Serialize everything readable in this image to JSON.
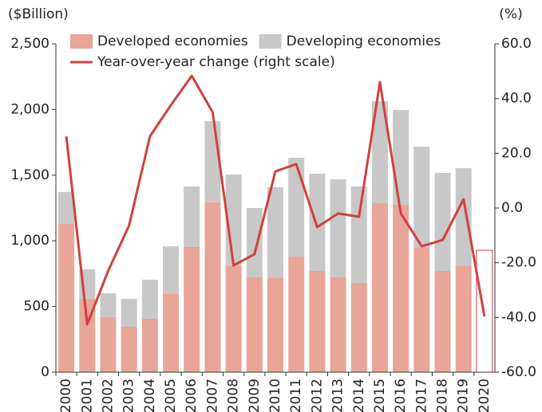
{
  "chart_data": {
    "type": "bar",
    "y_label": "($Billion)",
    "y2_label": "(%)",
    "categories": [
      "2000",
      "2001",
      "2002",
      "2003",
      "2004",
      "2005",
      "2006",
      "2007",
      "2008",
      "2009",
      "2010",
      "2011",
      "2012",
      "2013",
      "2014",
      "2015",
      "2016",
      "2017",
      "2018",
      "2019",
      "2020"
    ],
    "series": [
      {
        "name": "Developed economies",
        "color": "#e8a598",
        "kind": "bar",
        "values": [
          1129,
          558,
          419,
          346,
          407,
          595,
          953,
          1293,
          807,
          722,
          716,
          880,
          771,
          722,
          680,
          1286,
          1274,
          950,
          771,
          807,
          null
        ]
      },
      {
        "name": "Developing economies",
        "color": "#c8c8c8",
        "kind": "bar",
        "values": [
          242,
          225,
          182,
          212,
          297,
          364,
          461,
          618,
          698,
          528,
          692,
          752,
          740,
          746,
          734,
          777,
          722,
          767,
          746,
          746,
          null
        ]
      },
      {
        "color": "#d04040",
        "kind": "outline",
        "values": [
          null,
          null,
          null,
          null,
          null,
          null,
          null,
          null,
          null,
          null,
          null,
          null,
          null,
          null,
          null,
          null,
          null,
          null,
          null,
          null,
          928
        ]
      },
      {
        "name": "Year-over-year change (right scale)",
        "color": "#d04040",
        "kind": "line",
        "axis": "y2",
        "values": [
          26.2,
          -42.5,
          -23.0,
          -6.4,
          26.2,
          37.6,
          48.3,
          35.0,
          -21.0,
          -16.9,
          13.4,
          16.0,
          -7.0,
          -2.0,
          -3.2,
          46.0,
          -2.0,
          -14.0,
          -11.7,
          3.2,
          -39.6
        ]
      }
    ],
    "ylim": [
      0,
      2500
    ],
    "yticks": [
      0,
      500,
      {
        "value": 1000,
        "label": "1,000"
      },
      {
        "value": 1500,
        "label": "1,500"
      },
      {
        "value": 2000,
        "label": "2,000"
      },
      {
        "value": 2500,
        "label": "2,500"
      }
    ],
    "y2lim": [
      -60,
      60
    ],
    "y2ticks": [
      {
        "value": -60,
        "label": "-60.0"
      },
      {
        "value": -40,
        "label": "-40.0"
      },
      {
        "value": -20,
        "label": "-20.0"
      },
      {
        "value": 0,
        "label": "0.0"
      },
      {
        "value": 20,
        "label": "20.0"
      },
      {
        "value": 40,
        "label": "40.0"
      },
      {
        "value": 60,
        "label": "60.0"
      }
    ],
    "legend": "top-left"
  }
}
